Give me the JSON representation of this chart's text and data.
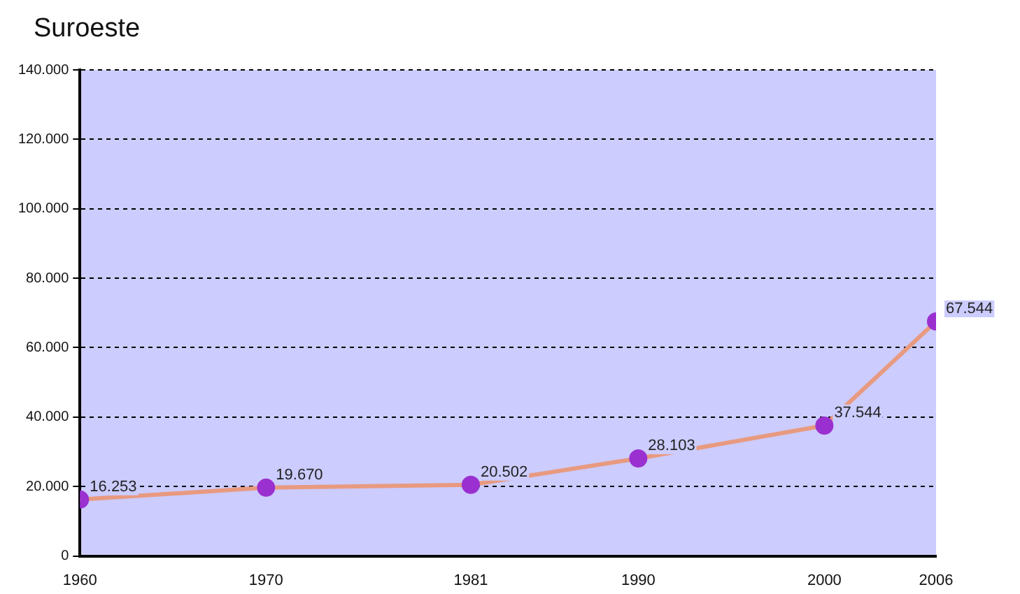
{
  "chart_data": {
    "type": "line",
    "title": "Suroeste",
    "x": [
      1960,
      1970,
      1981,
      1990,
      2000,
      2006
    ],
    "series": [
      {
        "color": "#e89a80",
        "values": [
          16253,
          19670,
          20502,
          28103,
          37544,
          67544
        ],
        "value_labels": [
          "16.253",
          "19.670",
          "20.502",
          "28.103",
          "37.544",
          "67.544"
        ]
      }
    ],
    "xlim": [
      1960,
      2006
    ],
    "xticks": [
      1960,
      1970,
      1981,
      1990,
      2000,
      2006
    ],
    "ylim": [
      0,
      140000
    ],
    "yticks": [
      0,
      {
        "value": 20000,
        "label": "20.000"
      },
      {
        "value": 40000,
        "label": "40.000"
      },
      {
        "value": 60000,
        "label": "60.000"
      },
      {
        "value": 80000,
        "label": "80.000"
      },
      {
        "value": 100000,
        "label": "100.000"
      },
      {
        "value": 120000,
        "label": "120.000"
      },
      {
        "value": 140000,
        "label": "140.000"
      }
    ],
    "grid": "y",
    "marker": "circle",
    "line_style": "solid",
    "legend": false
  }
}
